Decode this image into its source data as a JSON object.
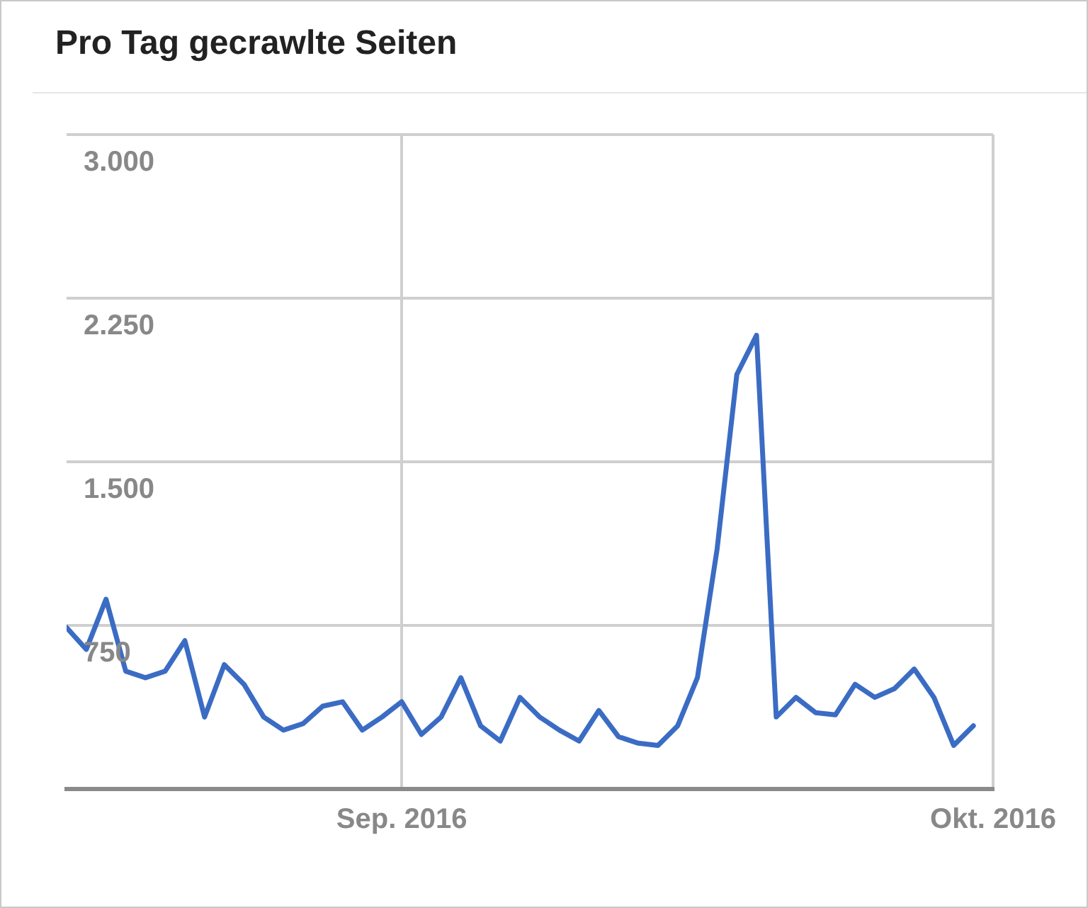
{
  "chart_data": {
    "type": "line",
    "title": "Pro Tag gecrawlte Seiten",
    "x": [
      "2016-08-15",
      "2016-08-16",
      "2016-08-17",
      "2016-08-18",
      "2016-08-19",
      "2016-08-20",
      "2016-08-21",
      "2016-08-22",
      "2016-08-23",
      "2016-08-24",
      "2016-08-25",
      "2016-08-26",
      "2016-08-27",
      "2016-08-28",
      "2016-08-29",
      "2016-08-30",
      "2016-08-31",
      "2016-09-01",
      "2016-09-02",
      "2016-09-03",
      "2016-09-04",
      "2016-09-05",
      "2016-09-06",
      "2016-09-07",
      "2016-09-08",
      "2016-09-09",
      "2016-09-10",
      "2016-09-11",
      "2016-09-12",
      "2016-09-13",
      "2016-09-14",
      "2016-09-15",
      "2016-09-16",
      "2016-09-17",
      "2016-09-18",
      "2016-09-19",
      "2016-09-20",
      "2016-09-21",
      "2016-09-22",
      "2016-09-23",
      "2016-09-24",
      "2016-09-25",
      "2016-09-26",
      "2016-09-27",
      "2016-09-28",
      "2016-09-29",
      "2016-09-30"
    ],
    "series": [
      {
        "color": "#3b6cc4",
        "values": [
          740,
          640,
          870,
          540,
          510,
          540,
          680,
          330,
          570,
          480,
          330,
          270,
          300,
          380,
          400,
          270,
          330,
          400,
          250,
          330,
          510,
          290,
          220,
          420,
          330,
          270,
          220,
          360,
          240,
          210,
          200,
          290,
          510,
          1100,
          1900,
          2080,
          330,
          420,
          350,
          340,
          480,
          420,
          460,
          550,
          420,
          200,
          290
        ]
      }
    ],
    "xlim": [
      "2016-08-15",
      "2016-10-01"
    ],
    "xticks": [
      {
        "value": "2016-09-01",
        "label": "Sep. 2016"
      },
      {
        "value": "2016-10-01",
        "label": "Okt. 2016"
      }
    ],
    "ylim": [
      0,
      3000
    ],
    "yticks": [
      {
        "value": 0,
        "label": null
      },
      {
        "value": 750,
        "label": "750"
      },
      {
        "value": 1500,
        "label": "1.500"
      },
      {
        "value": 2250,
        "label": "2.250"
      },
      {
        "value": 3000,
        "label": "3.000"
      }
    ],
    "grid": true,
    "legend": false,
    "marker": "none",
    "line_style": "solid"
  }
}
